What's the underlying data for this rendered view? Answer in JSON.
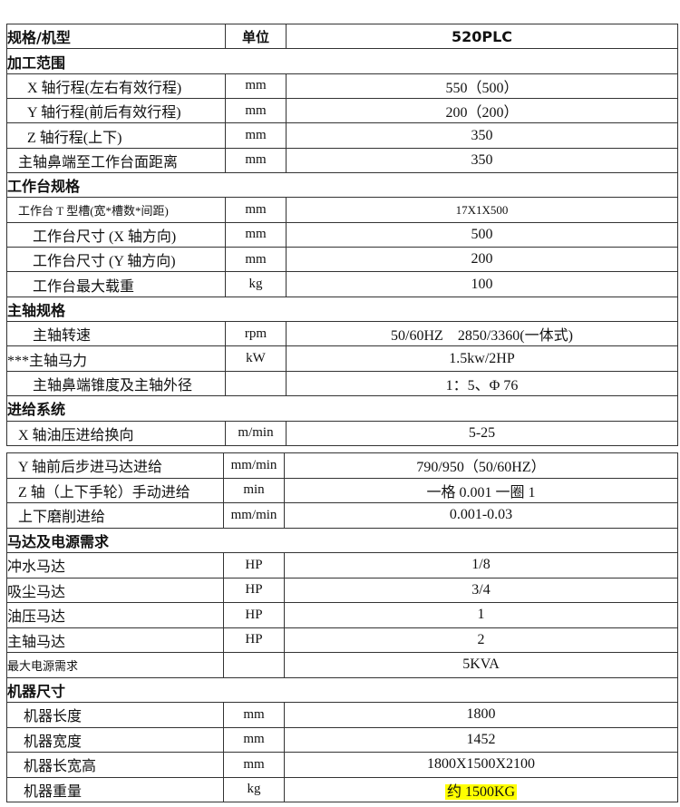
{
  "header": {
    "label": "规格/机型",
    "unit": "单位",
    "model": "520PLC"
  },
  "table1": [
    {
      "type": "section",
      "label": "加工范围"
    },
    {
      "type": "item",
      "label": "X 轴行程(左右有效行程)",
      "unit": "mm",
      "value": "550（500）"
    },
    {
      "type": "item",
      "label": "Y 轴行程(前后有效行程)",
      "unit": "mm",
      "value": "200（200）"
    },
    {
      "type": "item",
      "label": "Z 轴行程(上下)",
      "unit": "mm",
      "value": "350"
    },
    {
      "type": "item",
      "label": "主轴鼻端至工作台面距离",
      "unit": "mm",
      "value": "350"
    },
    {
      "type": "section",
      "label": "工作台规格"
    },
    {
      "type": "item",
      "label": "工作台 T 型槽(宽*槽数*间距)",
      "unit": "mm",
      "value": "17X1X500"
    },
    {
      "type": "item",
      "label": "工作台尺寸 (X 轴方向)",
      "unit": "mm",
      "value": "500"
    },
    {
      "type": "item",
      "label": "工作台尺寸 (Y 轴方向)",
      "unit": "mm",
      "value": "200"
    },
    {
      "type": "item",
      "label": "工作台最大载重",
      "unit": "kg",
      "value": "100"
    },
    {
      "type": "section",
      "label": "主轴规格"
    },
    {
      "type": "item",
      "label": "主轴转速",
      "unit": "rpm",
      "value": "50/60HZ　2850/3360(一体式)"
    },
    {
      "type": "item",
      "label": "***主轴马力",
      "unit": "kW",
      "value": "1.5kw/2HP"
    },
    {
      "type": "item",
      "label": "主轴鼻端锥度及主轴外径",
      "unit": "",
      "value": "1：5、Φ 76"
    },
    {
      "type": "section",
      "label": "进给系统"
    },
    {
      "type": "item",
      "label": "X 轴油压进给换向",
      "unit": "m/min",
      "value": "5-25"
    }
  ],
  "table2": [
    {
      "type": "item",
      "label": "Y 轴前后步进马达进给",
      "unit": "mm/min",
      "value": "790/950（50/60HZ）"
    },
    {
      "type": "item",
      "label": "Z 轴（上下手轮）手动进给",
      "unit": "min",
      "value": "一格 0.001 一圈 1"
    },
    {
      "type": "item",
      "label": "上下磨削进给",
      "unit": "mm/min",
      "value": "0.001-0.03"
    },
    {
      "type": "section",
      "label": "马达及电源需求"
    },
    {
      "type": "item",
      "label": "冲水马达",
      "unit": "HP",
      "value": "1/8"
    },
    {
      "type": "item",
      "label": "吸尘马达",
      "unit": "HP",
      "value": "3/4"
    },
    {
      "type": "item",
      "label": "油压马达",
      "unit": "HP",
      "value": "1"
    },
    {
      "type": "item",
      "label": "主轴马达",
      "unit": "HP",
      "value": "2"
    },
    {
      "type": "item",
      "label": "最大电源需求",
      "unit": "",
      "value": "5KVA"
    },
    {
      "type": "section",
      "label": "机器尺寸"
    },
    {
      "type": "item",
      "label": "机器长度",
      "unit": "mm",
      "value": "1800"
    },
    {
      "type": "item",
      "label": "机器宽度",
      "unit": "mm",
      "value": "1452"
    },
    {
      "type": "item",
      "label": "机器长宽高",
      "unit": "mm",
      "value": "1800X1500X2100"
    },
    {
      "type": "item",
      "label": "机器重量",
      "unit": "kg",
      "value": "约 1500KG",
      "highlight": "#ffff00"
    }
  ]
}
